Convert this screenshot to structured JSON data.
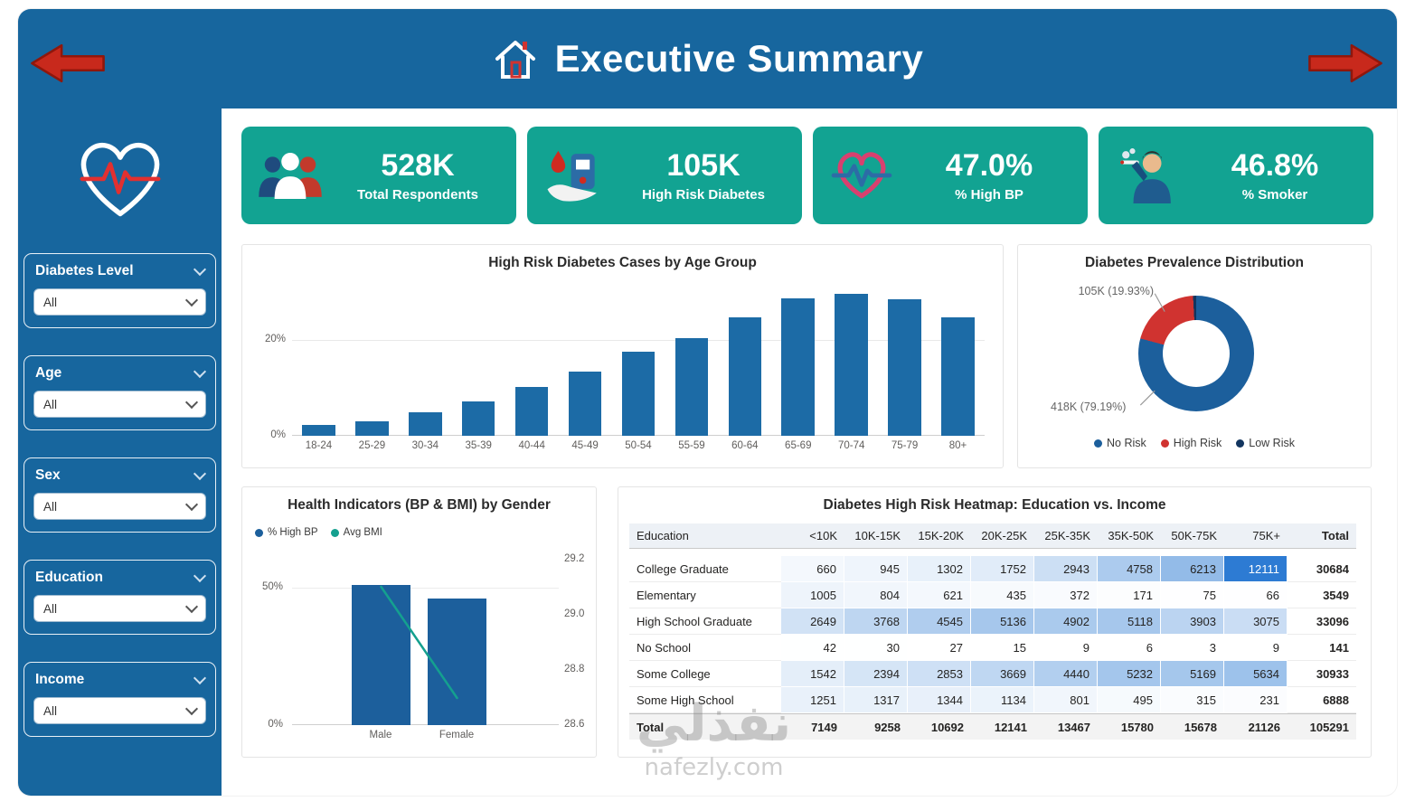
{
  "header": {
    "title": "Executive Summary",
    "home_icon": "home-icon",
    "back_icon": "arrow-left-icon",
    "forward_icon": "arrow-right-icon"
  },
  "sidebar": {
    "logo_icon": "heart-ekg-icon",
    "filters": [
      {
        "label": "Diabetes Level",
        "value": "All"
      },
      {
        "label": "Age",
        "value": "All"
      },
      {
        "label": "Sex",
        "value": "All"
      },
      {
        "label": "Education",
        "value": "All"
      },
      {
        "label": "Income",
        "value": "All"
      }
    ]
  },
  "kpis": [
    {
      "icon": "people-group-icon",
      "value": "528K",
      "label": "Total Respondents"
    },
    {
      "icon": "blood-glucose-icon",
      "value": "105K",
      "label": "High Risk Diabetes"
    },
    {
      "icon": "heart-pulse-icon",
      "value": "47.0%",
      "label": "% High BP"
    },
    {
      "icon": "smoker-icon",
      "value": "46.8%",
      "label": "% Smoker"
    }
  ],
  "colors": {
    "brand_blue": "#17669e",
    "kpi_teal": "#12a392",
    "bar_blue": "#1c6ba6",
    "donut_blue": "#1c5f9c",
    "risk_red": "#d03330",
    "low_risk_navy": "#12355f",
    "bmi_teal": "#14a08f",
    "heat_max_blue": "#2d7bd3",
    "arrow_red": "#c8291c"
  },
  "watermark": {
    "line1": "نفذلي",
    "line2": "nafezly.com"
  },
  "chart_data": [
    {
      "id": "age_bar",
      "type": "bar",
      "title": "High Risk Diabetes Cases by Age Group",
      "categories": [
        "18-24",
        "25-29",
        "30-34",
        "35-39",
        "40-44",
        "45-49",
        "50-54",
        "55-59",
        "60-64",
        "65-69",
        "70-74",
        "75-79",
        "80+"
      ],
      "values": [
        2.3,
        3.0,
        4.9,
        7.2,
        10.2,
        13.4,
        17.5,
        20.4,
        24.7,
        28.7,
        29.6,
        28.5,
        24.7
      ],
      "y_ticks": [
        "20%",
        "0%"
      ],
      "ylabel": "",
      "xlabel": "",
      "ylim": [
        0,
        31
      ],
      "grid": true,
      "bar_color": "#1c6ba6"
    },
    {
      "id": "prevalence_donut",
      "type": "pie",
      "title": "Diabetes Prevalence Distribution",
      "slices": [
        {
          "label": "No Risk",
          "value": 79.19,
          "count": "418K",
          "color": "#1c5f9c",
          "annotation": "418K (79.19%)"
        },
        {
          "label": "High Risk",
          "value": 19.93,
          "count": "105K",
          "color": "#d03330",
          "annotation": "105K (19.93%)"
        },
        {
          "label": "Low Risk",
          "value": 0.88,
          "count": "",
          "color": "#12355f",
          "annotation": ""
        }
      ],
      "legend_position": "bottom"
    },
    {
      "id": "gender_combo",
      "type": "bar",
      "title": "Health Indicators (BP & BMI) by Gender",
      "categories": [
        "Male",
        "Female"
      ],
      "series": [
        {
          "name": "% High BP",
          "kind": "bar",
          "values": [
            51,
            46
          ],
          "color": "#1c5f9c",
          "axis": "left"
        },
        {
          "name": "Avg BMI",
          "kind": "line",
          "values": [
            29.1,
            28.7
          ],
          "color": "#14a08f",
          "axis": "right"
        }
      ],
      "left_axis": {
        "ticks": [
          "50%",
          "0%"
        ],
        "lim": [
          0,
          62
        ]
      },
      "right_axis": {
        "ticks": [
          "29.2",
          "29.0",
          "28.8",
          "28.6"
        ],
        "min": 28.6,
        "max": 29.2
      },
      "legend_position": "top-left"
    },
    {
      "id": "heatmap",
      "type": "heatmap",
      "title": "Diabetes High Risk Heatmap: Education vs. Income",
      "columns": [
        "Education",
        "<10K",
        "10K-15K",
        "15K-20K",
        "20K-25K",
        "25K-35K",
        "35K-50K",
        "50K-75K",
        "75K+",
        "Total"
      ],
      "rows": [
        {
          "label": "College Graduate",
          "values": [
            660,
            945,
            1302,
            1752,
            2943,
            4758,
            6213,
            12111
          ],
          "total": 30684
        },
        {
          "label": "Elementary",
          "values": [
            1005,
            804,
            621,
            435,
            372,
            171,
            75,
            66
          ],
          "total": 3549
        },
        {
          "label": "High School Graduate",
          "values": [
            2649,
            3768,
            4545,
            5136,
            4902,
            5118,
            3903,
            3075
          ],
          "total": 33096
        },
        {
          "label": "No School",
          "values": [
            42,
            30,
            27,
            15,
            9,
            6,
            3,
            9
          ],
          "total": 141
        },
        {
          "label": "Some College",
          "values": [
            1542,
            2394,
            2853,
            3669,
            4440,
            5232,
            5169,
            5634
          ],
          "total": 30933
        },
        {
          "label": "Some High School",
          "values": [
            1251,
            1317,
            1344,
            1134,
            801,
            495,
            315,
            231
          ],
          "total": 6888
        }
      ],
      "total_row": {
        "label": "Total",
        "values": [
          7149,
          9258,
          10692,
          12141,
          13467,
          15780,
          15678,
          21126
        ],
        "total": 105291
      }
    }
  ]
}
